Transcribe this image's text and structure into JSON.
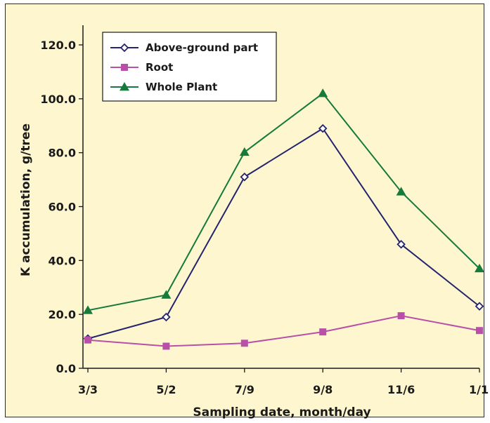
{
  "chart_data": {
    "type": "line",
    "categories": [
      "3/3",
      "5/2",
      "7/9",
      "9/8",
      "11/6",
      "1/1"
    ],
    "series": [
      {
        "name": "Above-ground part",
        "values": [
          11.0,
          19.0,
          71.0,
          89.0,
          46.0,
          23.0
        ],
        "color": "#24246e",
        "marker": "diamond-open"
      },
      {
        "name": "Root",
        "values": [
          10.5,
          8.2,
          9.3,
          13.5,
          19.5,
          14.0
        ],
        "color": "#b84fa8",
        "marker": "square"
      },
      {
        "name": "Whole Plant",
        "values": [
          21.5,
          27.2,
          80.2,
          102.0,
          65.5,
          37.0
        ],
        "color": "#157a3a",
        "marker": "triangle"
      }
    ],
    "xlabel": "Sampling date, month/day",
    "ylabel": "K accumulation, g/tree",
    "ylim": [
      0,
      120
    ],
    "yticks": [
      "0.0",
      "20.0",
      "40.0",
      "60.0",
      "80.0",
      "100.0",
      "120.0"
    ],
    "legend_position": "top-left",
    "grid": false,
    "background_color": "#fdf6cf"
  }
}
